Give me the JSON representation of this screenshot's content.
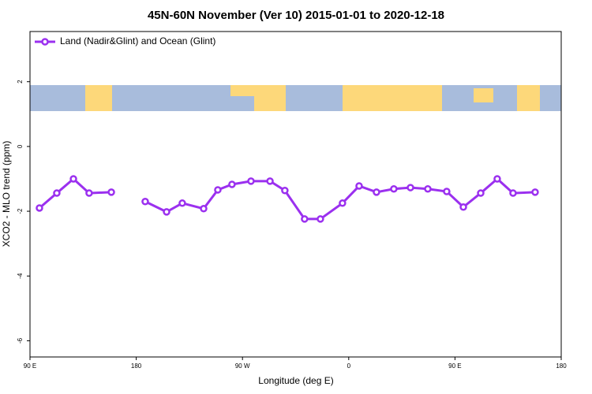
{
  "chart_data": {
    "type": "line",
    "title": "45N-60N November (Ver 10)   2015-01-01 to 2020-12-18",
    "x_label": "Longitude (deg E)",
    "y_label": "XCO2 - MLO trend (ppm)",
    "x": [
      98.0,
      112.7,
      126.8,
      140.1,
      158.9,
      173.4,
      187.6,
      205.7,
      219.0,
      237.1,
      249.1,
      261.1,
      277.2,
      293.3,
      305.9,
      322.6,
      336.0,
      354.7,
      368.8,
      383.5,
      398.2,
      412.3,
      427.0,
      443.0,
      457.1,
      471.8,
      485.8,
      499.2,
      517.9
    ],
    "series": [
      {
        "name": "Land (Nadir&Glint) and Ocean (Glint)",
        "color": "#9b30ef",
        "values": [
          -1.9,
          -1.44,
          -1.0,
          -1.44,
          -1.41,
          null,
          -1.7,
          -2.02,
          -1.75,
          -1.92,
          -1.34,
          -1.17,
          -1.07,
          -1.07,
          -1.36,
          -2.24,
          -2.24,
          -1.75,
          -1.22,
          -1.41,
          -1.31,
          -1.27,
          -1.31,
          -1.39,
          -1.87,
          -1.44,
          -1.0,
          -1.44,
          -1.41
        ]
      }
    ],
    "xlim": [
      90,
      540
    ],
    "xticks": [
      {
        "value": 90,
        "label": "90 E"
      },
      {
        "value": 180,
        "label": "180"
      },
      {
        "value": 270,
        "label": "90 W"
      },
      {
        "value": 360,
        "label": "0"
      },
      {
        "value": 450,
        "label": "90 E"
      },
      {
        "value": 540,
        "label": "180"
      }
    ],
    "ylim": [
      -6.5,
      3.55
    ],
    "yticks": [
      2,
      0,
      -2,
      -4,
      -6
    ],
    "legend": "top-left"
  }
}
